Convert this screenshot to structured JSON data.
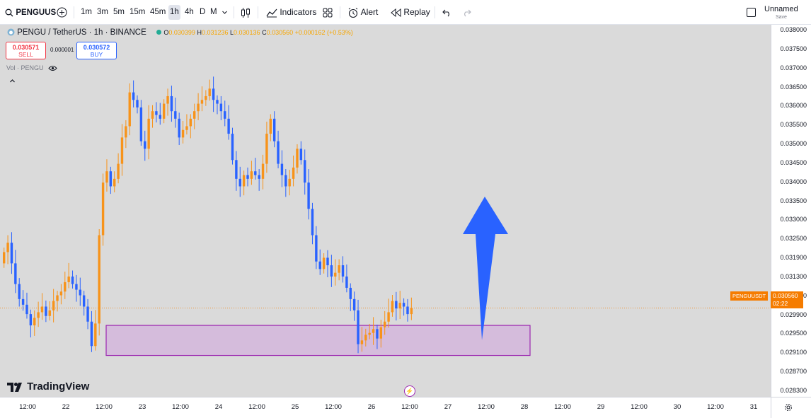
{
  "toolbar": {
    "symbol": "PENGUUS",
    "timeframes": [
      "1m",
      "3m",
      "5m",
      "15m",
      "45m",
      "1h",
      "4h",
      "D",
      "M"
    ],
    "active_timeframe": "1h",
    "indicators_label": "Indicators",
    "alert_label": "Alert",
    "replay_label": "Replay",
    "layout_name": "Unnamed",
    "layout_sub": "Save"
  },
  "legend": {
    "title": "PENGU / TetherUS · 1h · BINANCE",
    "o_label": "O",
    "o": "0.030399",
    "h_label": "H",
    "h": "0.031236",
    "l_label": "L",
    "l": "0.030136",
    "c_label": "C",
    "c": "0.030560",
    "change": "+0.000162 (+0.53%)"
  },
  "trade": {
    "sell_price": "0.030571",
    "sell_label": "SELL",
    "spread": "0.000001",
    "buy_price": "0.030572",
    "buy_label": "BUY"
  },
  "volume_label": "Vol · PENGU",
  "last_price": {
    "symbol": "PENGUUSDT",
    "price": "0.030560",
    "countdown": "02:22"
  },
  "brand": "TradingView",
  "price_axis": [
    "0.038000",
    "0.037500",
    "0.037000",
    "0.036500",
    "0.036000",
    "0.035500",
    "0.035000",
    "0.034500",
    "0.034000",
    "0.033500",
    "0.033000",
    "0.032500",
    "0.031900",
    "0.031300",
    "0.030700",
    "0.029900",
    "0.029500",
    "0.029100",
    "0.028700",
    "0.028300"
  ],
  "time_axis": [
    "12:00",
    "22",
    "12:00",
    "23",
    "12:00",
    "24",
    "12:00",
    "25",
    "12:00",
    "26",
    "12:00",
    "27",
    "12:00",
    "28",
    "12:00",
    "29",
    "12:00",
    "30",
    "12:00",
    "31"
  ],
  "colors": {
    "up": "#f7931a",
    "down": "#2962ff",
    "zone_fill": "#d4b8dc",
    "zone_border": "#9c27b0",
    "arrow": "#2962ff",
    "last_price": "#f57c00"
  },
  "chart_data": {
    "type": "candlestick",
    "closes": [
      0.03205,
      0.0323,
      0.03175,
      0.0312,
      0.0308,
      0.03065,
      0.0304,
      0.0301,
      0.0303,
      0.03045,
      0.0306,
      0.03035,
      0.0305,
      0.03075,
      0.0309,
      0.031,
      0.03125,
      0.0314,
      0.0312,
      0.03105,
      0.0309,
      0.0306,
      0.0302,
      0.02955,
      0.03015,
      0.0325,
      0.0339,
      0.0342,
      0.0338,
      0.034,
      0.0344,
      0.0351,
      0.0354,
      0.0363,
      0.0361,
      0.0359,
      0.035,
      0.0348,
      0.0356,
      0.0358,
      0.0357,
      0.0356,
      0.036,
      0.0362,
      0.0358,
      0.0356,
      0.0351,
      0.0353,
      0.0354,
      0.0356,
      0.0358,
      0.036,
      0.0361,
      0.0362,
      0.0364,
      0.0361,
      0.036,
      0.0358,
      0.0356,
      0.0352,
      0.0345,
      0.034,
      0.0338,
      0.0341,
      0.034,
      0.0342,
      0.0341,
      0.034,
      0.0344,
      0.0352,
      0.0356,
      0.035,
      0.0344,
      0.0341,
      0.0338,
      0.034,
      0.0343,
      0.0348,
      0.0345,
      0.0339,
      0.0332,
      0.0325,
      0.0318,
      0.0316,
      0.0319,
      0.0317,
      0.0314,
      0.0315,
      0.0317,
      0.0314,
      0.0311,
      0.0308,
      0.0305,
      0.0296,
      0.0297,
      0.02985,
      0.0299,
      0.03,
      0.02975,
      0.03005,
      0.0302,
      0.03045,
      0.03075,
      0.03055,
      0.0307,
      0.0306,
      0.0304,
      0.03056
    ],
    "ylim": [
      0.0282,
      0.0381
    ],
    "last_price": 0.03056,
    "demand_zone": [
      0.0293,
      0.0301
    ],
    "annotation": "upward arrow"
  }
}
